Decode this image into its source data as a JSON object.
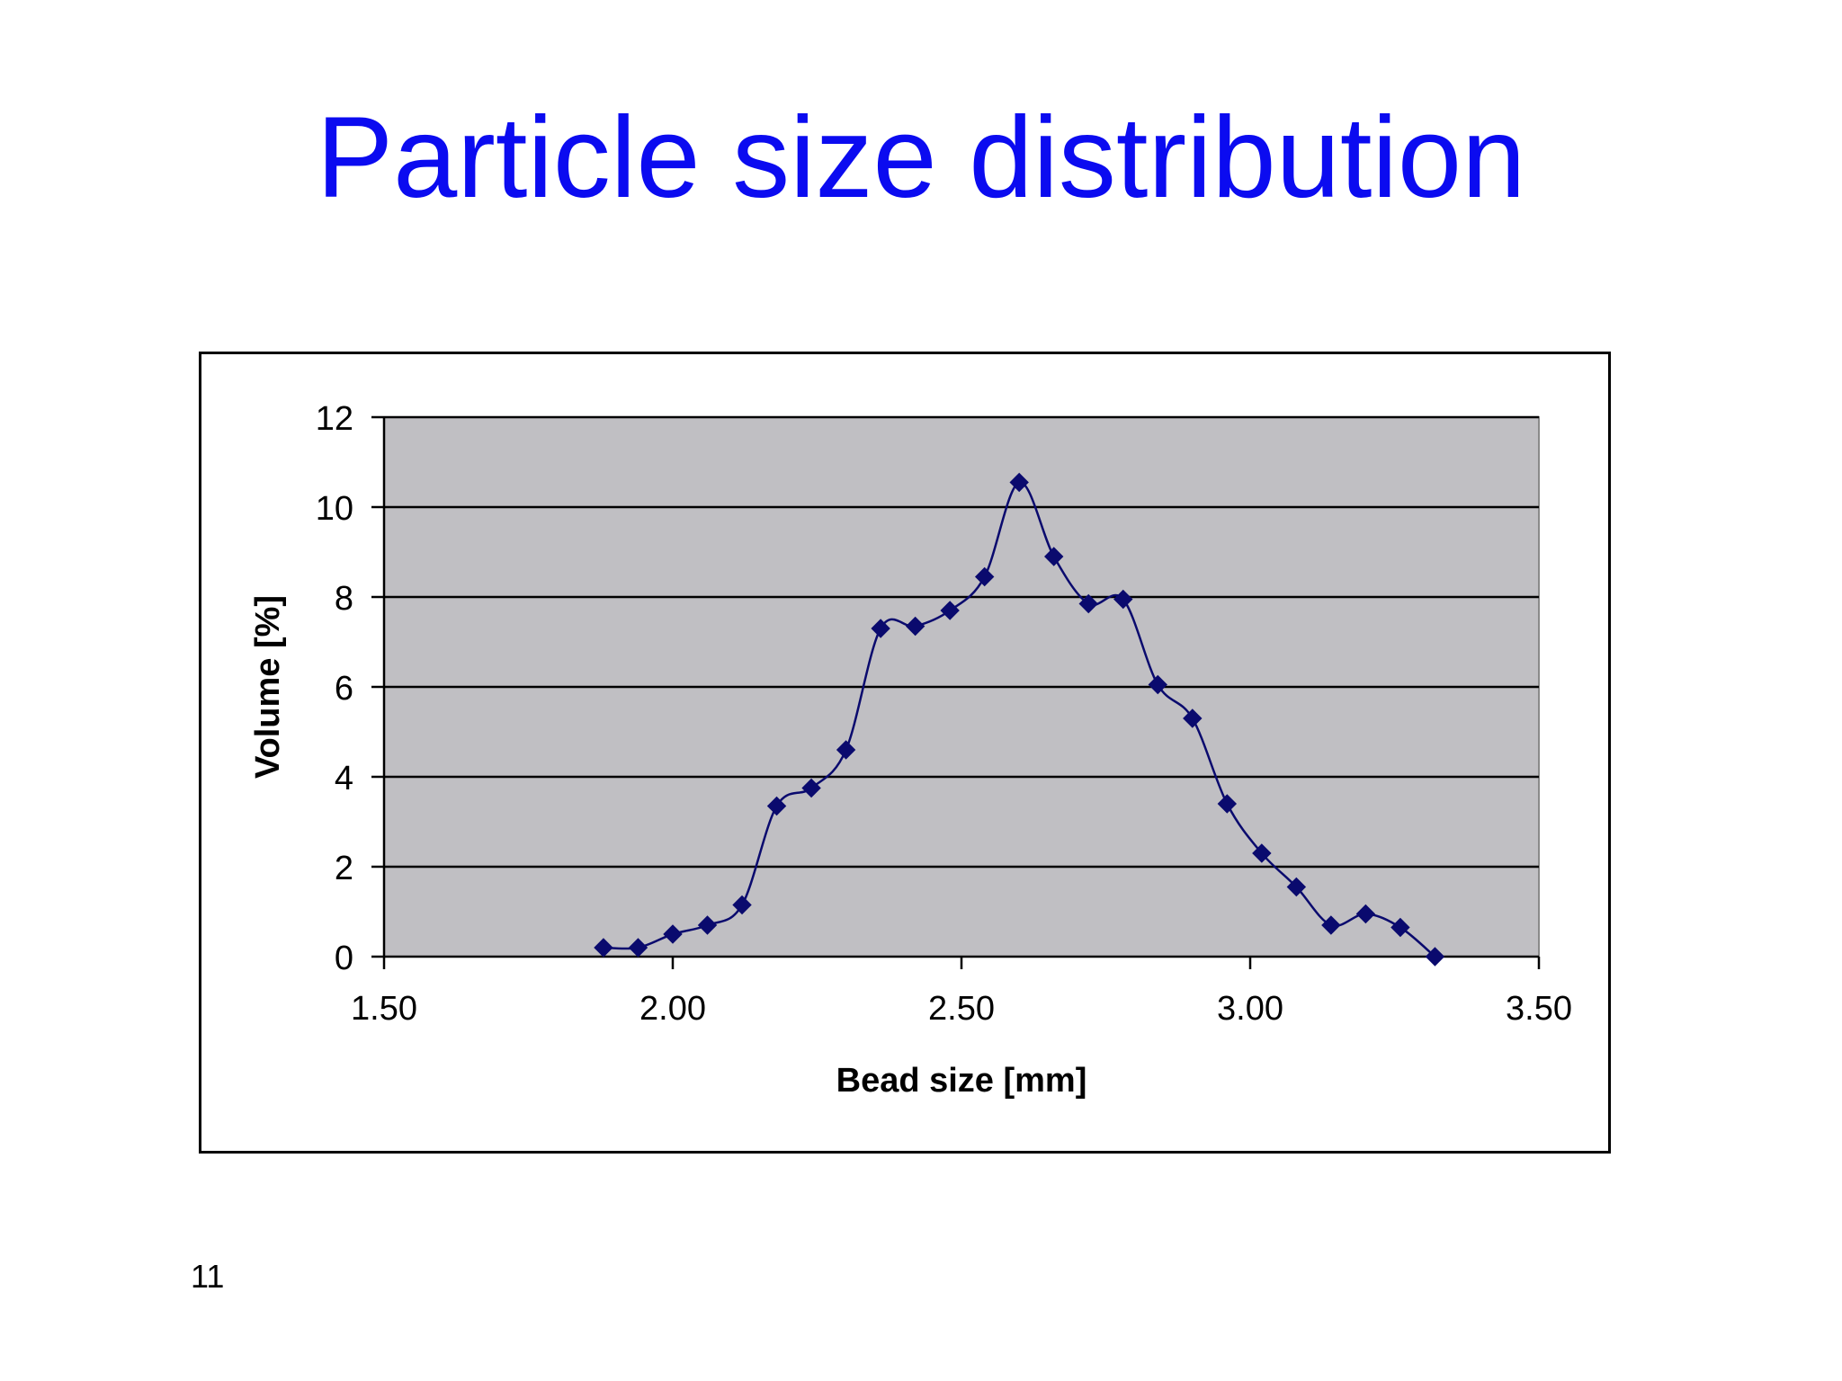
{
  "slide": {
    "title": "Particle size distribution",
    "page_number": "11"
  },
  "colors": {
    "title": "#0b0bf0",
    "plot_background": "#c0bfc3",
    "series": "#0a0a6e",
    "gridline": "#000000"
  },
  "chart_data": {
    "type": "scatter",
    "style": "smoothed line with diamond markers",
    "xlabel": "Bead size [mm]",
    "ylabel": "Volume [%]",
    "xlim": [
      1.5,
      3.5
    ],
    "ylim": [
      0,
      12
    ],
    "xticks": [
      1.5,
      2.0,
      2.5,
      3.0,
      3.5
    ],
    "xtick_labels": [
      "1.50",
      "2.00",
      "2.50",
      "3.00",
      "3.50"
    ],
    "yticks": [
      0,
      2,
      4,
      6,
      8,
      10,
      12
    ],
    "ytick_labels": [
      "0",
      "2",
      "4",
      "6",
      "8",
      "10",
      "12"
    ],
    "grid": "horizontal",
    "legend": "none",
    "series": [
      {
        "x": [
          1.88,
          1.94,
          2.0,
          2.06,
          2.12,
          2.18,
          2.24,
          2.3,
          2.36,
          2.42,
          2.48,
          2.54,
          2.6,
          2.66,
          2.72,
          2.78,
          2.84,
          2.9,
          2.96,
          3.02,
          3.08,
          3.14,
          3.2,
          3.26,
          3.32
        ],
        "y": [
          0.2,
          0.2,
          0.5,
          0.7,
          1.15,
          3.35,
          3.75,
          4.6,
          7.3,
          7.35,
          7.7,
          8.45,
          10.55,
          8.9,
          7.85,
          7.95,
          6.05,
          5.3,
          3.4,
          2.3,
          1.55,
          0.7,
          0.95,
          0.65,
          0.0
        ]
      }
    ]
  }
}
